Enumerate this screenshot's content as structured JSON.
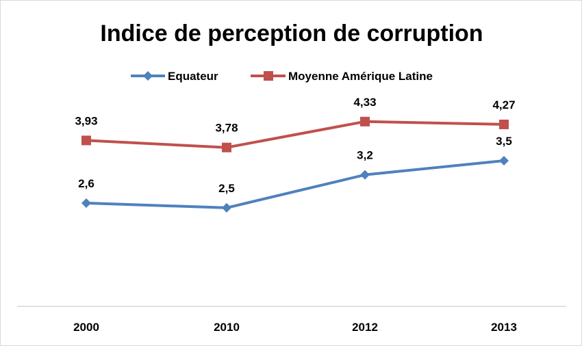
{
  "chart_data": {
    "type": "line",
    "title": "Indice de perception de corruption",
    "categories": [
      "2000",
      "2010",
      "2012",
      "2013"
    ],
    "series": [
      {
        "name": "Equateur",
        "values": [
          2.6,
          2.5,
          3.2,
          3.5
        ],
        "labels": [
          "2,6",
          "2,5",
          "3,2",
          "3,5"
        ],
        "color": "#4f81bd",
        "marker": "diamond"
      },
      {
        "name": "Moyenne Amérique Latine",
        "values": [
          3.93,
          3.78,
          4.33,
          4.27
        ],
        "labels": [
          "3,93",
          "3,78",
          "4,33",
          "4,27"
        ],
        "color": "#c0504d",
        "marker": "square"
      }
    ],
    "legend_position": "top",
    "grid": false,
    "y_axis_visible": false
  }
}
